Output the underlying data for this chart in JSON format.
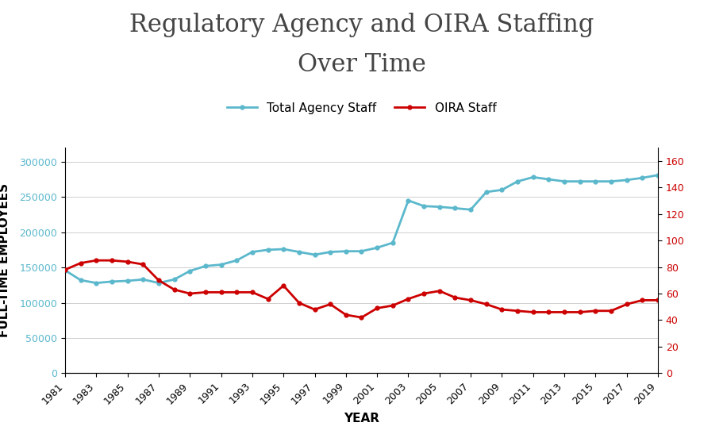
{
  "years": [
    1981,
    1982,
    1983,
    1984,
    1985,
    1986,
    1987,
    1988,
    1989,
    1990,
    1991,
    1992,
    1993,
    1994,
    1995,
    1996,
    1997,
    1998,
    1999,
    2000,
    2001,
    2002,
    2003,
    2004,
    2005,
    2006,
    2007,
    2008,
    2009,
    2010,
    2011,
    2012,
    2013,
    2014,
    2015,
    2016,
    2017,
    2018,
    2019
  ],
  "total_agency": [
    146000,
    132000,
    128000,
    130000,
    131000,
    133000,
    128000,
    133000,
    145000,
    152000,
    154000,
    160000,
    172000,
    175000,
    176000,
    172000,
    168000,
    172000,
    173000,
    173000,
    178000,
    185000,
    245000,
    237000,
    236000,
    234000,
    232000,
    257000,
    260000,
    272000,
    278000,
    275000,
    272000,
    272000,
    272000,
    272000,
    274000,
    277000,
    281000
  ],
  "oira_staff": [
    78,
    83,
    85,
    85,
    84,
    82,
    70,
    63,
    60,
    61,
    61,
    61,
    61,
    56,
    66,
    53,
    48,
    52,
    44,
    42,
    49,
    51,
    56,
    60,
    62,
    57,
    55,
    52,
    48,
    47,
    46,
    46,
    46,
    46,
    47,
    47,
    52,
    55,
    55
  ],
  "title_line1": "Regulatory Agency and OIRA Staffing",
  "title_line2": "Over Time",
  "ylabel_left": "FULL-TIME EMPLOYEES",
  "xlabel": "YEAR",
  "legend_labels": [
    "Total Agency Staff",
    "OIRA Staff"
  ],
  "line_color_agency": "#5bb8cc",
  "line_color_oira": "#cc0000",
  "ylim_left": [
    0,
    320000
  ],
  "ylim_right": [
    0,
    170
  ],
  "yticks_left": [
    0,
    50000,
    100000,
    150000,
    200000,
    250000,
    300000
  ],
  "yticks_right": [
    0,
    20,
    40,
    60,
    80,
    100,
    120,
    140,
    160
  ],
  "title_fontsize": 22,
  "label_fontsize": 11,
  "tick_fontsize": 9,
  "legend_fontsize": 11,
  "background_color": "#ffffff",
  "grid_color": "#d0d0d0"
}
